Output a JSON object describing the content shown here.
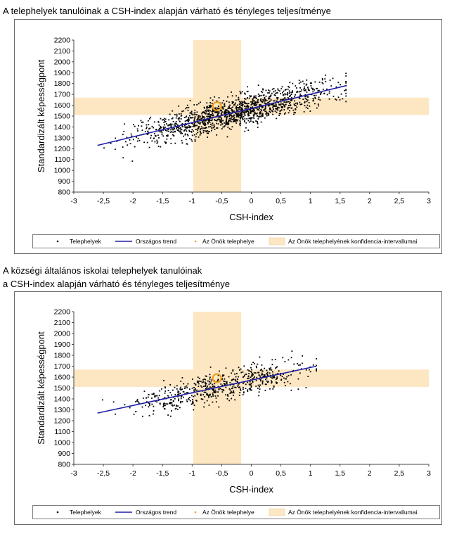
{
  "page": {
    "title1": "A telephelyek tanulóinak a CSH-index alapján várható és tényleges teljesítménye",
    "title2_line1": "A községi általános iskolai telephelyek tanulóinak",
    "title2_line2": "a CSH-index alapján várható és tényleges teljesítménye"
  },
  "colors": {
    "points": "#000000",
    "trend": "#1f1fa8",
    "band": "#fde7c3",
    "marker": "#f0a020"
  },
  "chart_data": [
    {
      "type": "scatter",
      "title": "A telephelyek tanulóinak a CSH-index alapján várható és tényleges teljesítménye",
      "xlabel": "CSH-index",
      "ylabel": "Standardizált képességpont",
      "xlim": [
        -3,
        3
      ],
      "ylim": [
        800,
        2200
      ],
      "x_ticks": [
        "-3",
        "-2,5",
        "-2",
        "-1,5",
        "-1",
        "-0,5",
        "0",
        "0,5",
        "1",
        "1,5",
        "2",
        "2,5",
        "3"
      ],
      "y_ticks": [
        "800",
        "900",
        "1000",
        "1100",
        "1200",
        "1300",
        "1400",
        "1500",
        "1600",
        "1700",
        "1800",
        "1900",
        "2000",
        "2100",
        "2200"
      ],
      "series": [
        {
          "name": "Telephelyek",
          "kind": "points",
          "count": 1400,
          "x_range": [
            -2.6,
            1.6
          ],
          "y_at_min": 1230,
          "y_at_max": 1780,
          "scatter_sd": 75
        },
        {
          "name": "Országos trend",
          "kind": "line",
          "x": [
            -2.6,
            1.6
          ],
          "y": [
            1230,
            1780
          ]
        },
        {
          "name": "Az Önök telephelye",
          "kind": "marker",
          "x": -0.58,
          "y": 1590
        },
        {
          "name": "Az Önök telephelyének konfidencia-intervallumai",
          "kind": "band",
          "x_range": [
            -0.98,
            -0.17
          ],
          "y_range": [
            1510,
            1670
          ]
        }
      ],
      "legend": [
        "Telephelyek",
        "Országos trend",
        "Az Önök telephelye",
        "Az Önök telephelyének konfidencia-intervallumai"
      ],
      "legend_position": "bottom",
      "grid": false
    },
    {
      "type": "scatter",
      "title": "A községi általános iskolai telephelyek tanulóinak a CSH-index alapján várható és tényleges teljesítménye",
      "xlabel": "CSH-index",
      "ylabel": "Standardizált képességpont",
      "xlim": [
        -3,
        3
      ],
      "ylim": [
        800,
        2200
      ],
      "x_ticks": [
        "-3",
        "-2,5",
        "-2",
        "-1,5",
        "-1",
        "-0,5",
        "0",
        "0,5",
        "1",
        "1,5",
        "2",
        "2,5",
        "3"
      ],
      "y_ticks": [
        "800",
        "900",
        "1000",
        "1100",
        "1200",
        "1300",
        "1400",
        "1500",
        "1600",
        "1700",
        "1800",
        "1900",
        "2000",
        "2100",
        "2200"
      ],
      "series": [
        {
          "name": "Telephelyek",
          "kind": "points",
          "count": 600,
          "x_range": [
            -2.6,
            1.1
          ],
          "y_at_min": 1270,
          "y_at_max": 1700,
          "scatter_sd": 70
        },
        {
          "name": "Országos trend",
          "kind": "line",
          "x": [
            -2.6,
            1.1
          ],
          "y": [
            1270,
            1700
          ]
        },
        {
          "name": "Az Önök telephelye",
          "kind": "marker",
          "x": -0.58,
          "y": 1590
        },
        {
          "name": "Az Önök telephelyének konfidencia-intervallumai",
          "kind": "band",
          "x_range": [
            -0.98,
            -0.17
          ],
          "y_range": [
            1510,
            1670
          ]
        }
      ],
      "legend": [
        "Telephelyek",
        "Országos trend",
        "Az Önök telephelye",
        "Az Önök telephelyének konfidencia-intervallumai"
      ],
      "legend_position": "bottom",
      "grid": false
    }
  ]
}
